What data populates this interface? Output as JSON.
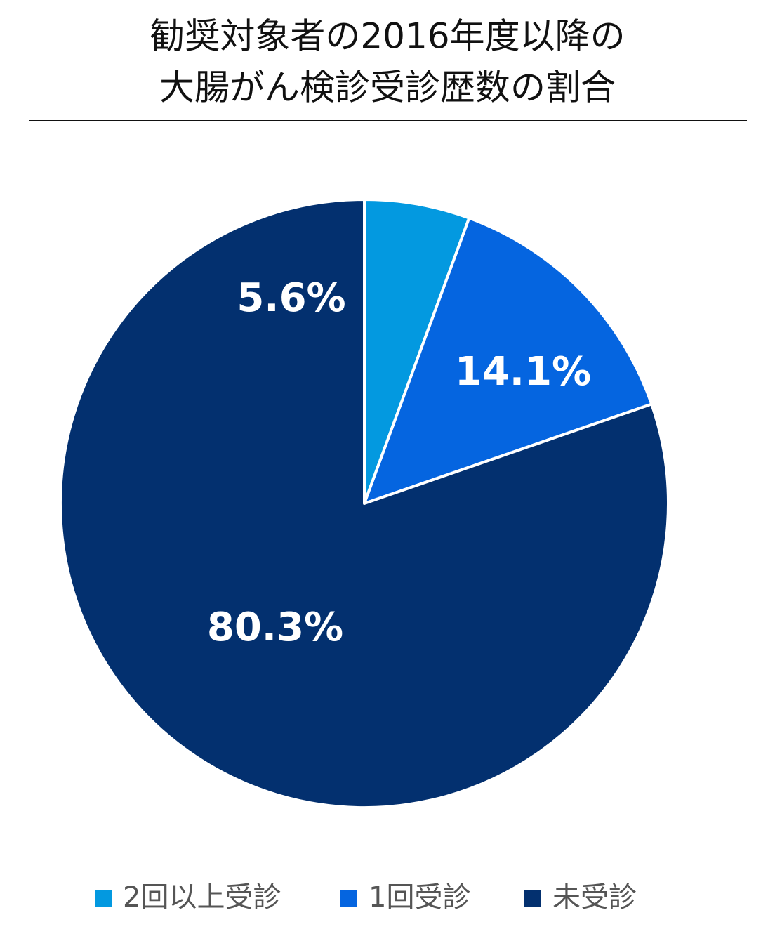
{
  "chart_data": {
    "type": "pie",
    "title": [
      "勧奨対象者の2016年度以降の",
      "大腸がん検診受診歴数の割合"
    ],
    "categories": [
      "2回以上受診",
      "1回受診",
      "未受診"
    ],
    "values": [
      5.6,
      14.1,
      80.3
    ],
    "value_labels": [
      "5.6%",
      "14.1%",
      "80.3%"
    ],
    "colors": [
      "#0399e0",
      "#0565e0",
      "#03306f"
    ],
    "legend": "bottom"
  }
}
